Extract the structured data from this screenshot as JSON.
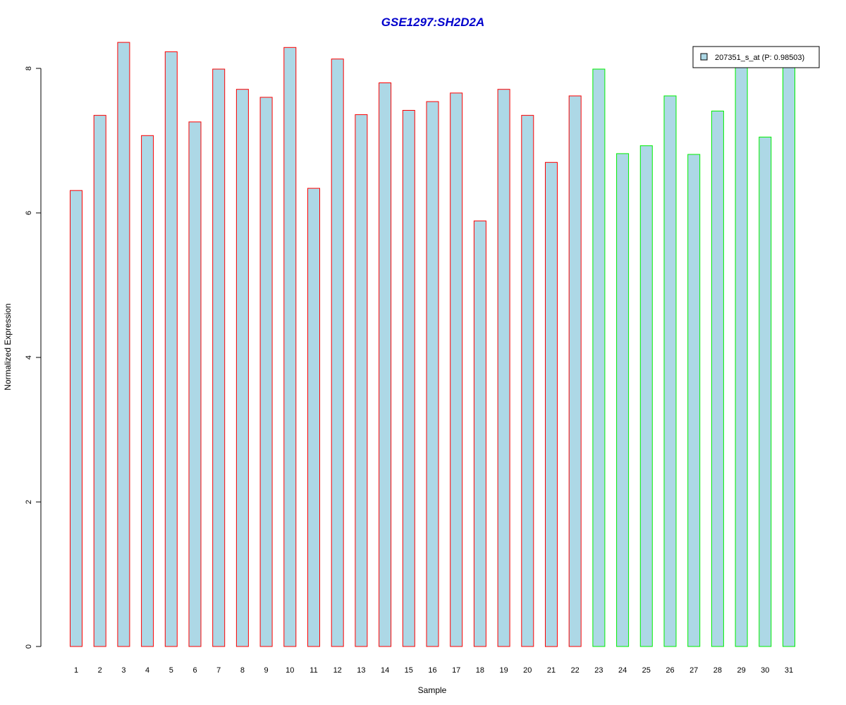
{
  "colors": {
    "title": "#0000cc",
    "bar_fill": "#add8e6",
    "group1_border": "#ff0000",
    "group2_border": "#00ee00",
    "axis": "#000000"
  },
  "chart_data": {
    "type": "bar",
    "title": "GSE1297:SH2D2A",
    "xlabel": "Sample",
    "ylabel": "Normalized Expression",
    "ylim": [
      0,
      8.4
    ],
    "yticks": [
      0,
      2,
      4,
      6,
      8
    ],
    "grid": false,
    "legend_position": "top-right",
    "categories": [
      "1",
      "2",
      "3",
      "4",
      "5",
      "6",
      "7",
      "8",
      "9",
      "10",
      "11",
      "12",
      "13",
      "14",
      "15",
      "16",
      "17",
      "18",
      "19",
      "20",
      "21",
      "22",
      "23",
      "24",
      "25",
      "26",
      "27",
      "28",
      "29",
      "30",
      "31"
    ],
    "series": [
      {
        "name": "207351_s_at (P: 0.98503)",
        "values": [
          6.31,
          7.35,
          8.36,
          7.07,
          8.23,
          7.26,
          7.99,
          7.71,
          7.6,
          8.29,
          6.34,
          8.13,
          7.36,
          7.8,
          7.42,
          7.54,
          7.66,
          5.89,
          7.71,
          7.35,
          6.7,
          7.62,
          7.99,
          6.82,
          6.93,
          7.62,
          6.81,
          7.41,
          8.06,
          7.05,
          8.05
        ]
      }
    ],
    "groups": [
      {
        "samples": [
          1,
          22
        ],
        "border_color": "#ff0000"
      },
      {
        "samples": [
          23,
          31
        ],
        "border_color": "#00ee00"
      }
    ]
  }
}
